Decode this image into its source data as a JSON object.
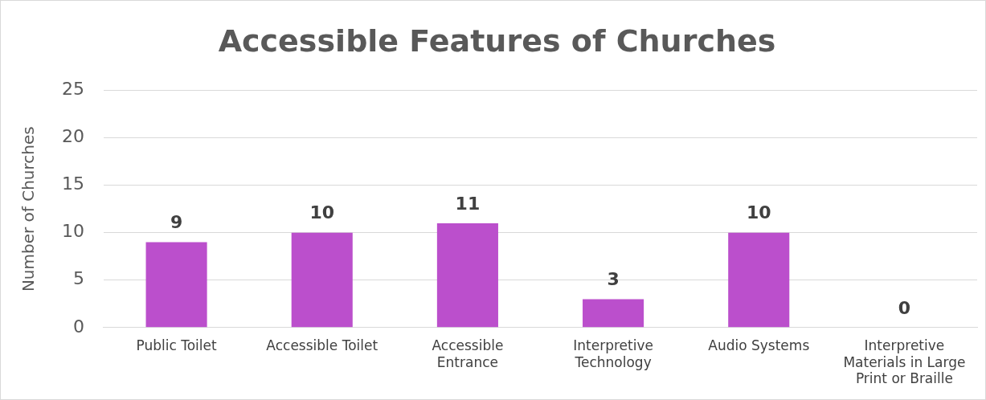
{
  "chart_data": {
    "type": "bar",
    "title": "Accessible Features of Churches",
    "ylabel": "Number of Churches",
    "categories": [
      "Public Toilet",
      "Accessible Toilet",
      "Accessible Entrance",
      "Interpretive Technology",
      "Audio Systems",
      "Interpretive Materials in Large Print or Braille"
    ],
    "values": [
      9,
      10,
      11,
      3,
      10,
      0
    ],
    "color": "#bb4fcc",
    "ylim": [
      0,
      25
    ],
    "yticks": [
      0,
      5,
      10,
      15,
      20,
      25
    ],
    "grid": "y",
    "data_labels": true,
    "legend": false
  }
}
